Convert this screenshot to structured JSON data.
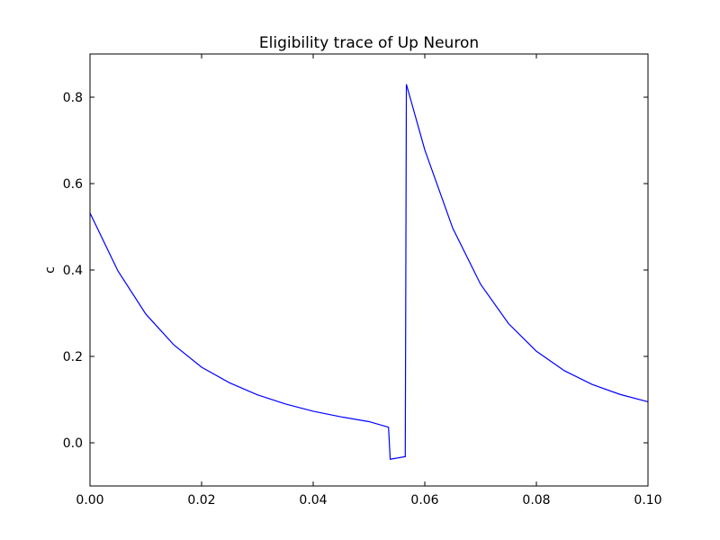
{
  "chart_data": {
    "type": "line",
    "title": "Eligibility trace of Up Neuron",
    "xlabel": "",
    "ylabel": "c",
    "xlim": [
      0.0,
      0.1
    ],
    "ylim": [
      -0.1,
      0.9
    ],
    "x_ticks": [
      0.0,
      0.02,
      0.04,
      0.06,
      0.08,
      0.1
    ],
    "x_tick_labels": [
      "0.00",
      "0.02",
      "0.04",
      "0.06",
      "0.08",
      "0.10"
    ],
    "y_ticks": [
      0.0,
      0.2,
      0.4,
      0.6,
      0.8
    ],
    "y_tick_labels": [
      "0.0",
      "0.2",
      "0.4",
      "0.6",
      "0.8"
    ],
    "grid": false,
    "line_color": "#0000ff",
    "series": [
      {
        "x": [
          0.0,
          0.005,
          0.01,
          0.015,
          0.02,
          0.025,
          0.03,
          0.035,
          0.04,
          0.045,
          0.05,
          0.0535,
          0.0538,
          0.0565,
          0.0567,
          0.06,
          0.065,
          0.07,
          0.075,
          0.08,
          0.085,
          0.09,
          0.095,
          0.1
        ],
        "y": [
          0.532,
          0.398,
          0.298,
          0.227,
          0.175,
          0.139,
          0.111,
          0.09,
          0.073,
          0.06,
          0.049,
          0.036,
          -0.038,
          -0.032,
          0.83,
          0.678,
          0.497,
          0.367,
          0.276,
          0.212,
          0.167,
          0.135,
          0.112,
          0.095
        ]
      }
    ]
  }
}
